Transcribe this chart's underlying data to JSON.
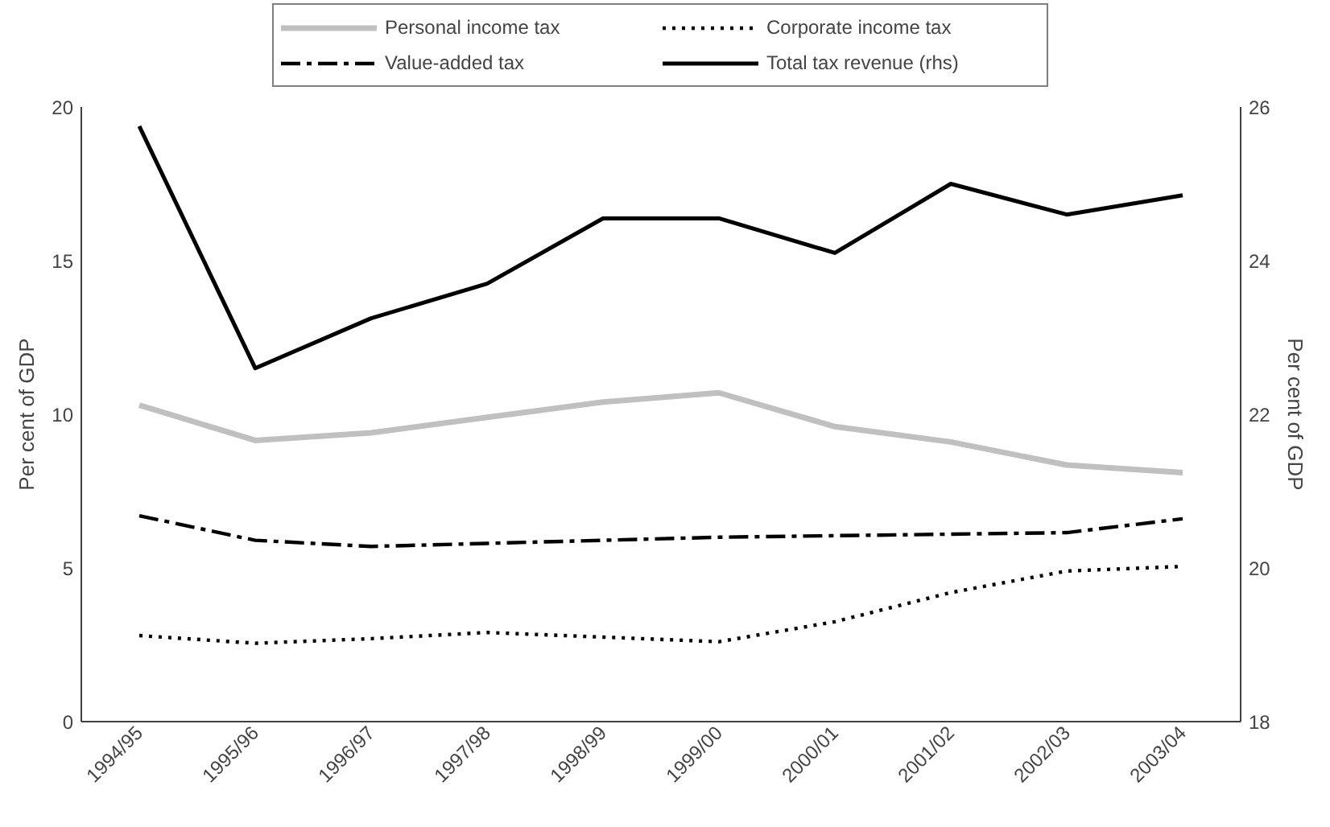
{
  "chart_data": {
    "type": "line",
    "categories": [
      "1994/95",
      "1995/96",
      "1996/97",
      "1997/98",
      "1998/99",
      "1999/00",
      "2000/01",
      "2001/02",
      "2002/03",
      "2003/04"
    ],
    "series": [
      {
        "name": "Personal income tax",
        "color": "#c0c0c0",
        "line_style": "solid",
        "values": [
          10.3,
          9.15,
          9.4,
          9.9,
          10.4,
          10.7,
          9.6,
          9.1,
          8.35,
          8.1
        ]
      },
      {
        "name": "Corporate income tax",
        "color": "#000000",
        "line_style": "dotted",
        "values": [
          2.8,
          2.55,
          2.7,
          2.9,
          2.75,
          2.6,
          3.25,
          4.2,
          4.9,
          5.05
        ]
      },
      {
        "name": "Value-added tax",
        "color": "#000000",
        "line_style": "dashdot",
        "values": [
          6.7,
          5.9,
          5.7,
          5.8,
          5.9,
          6.0,
          6.05,
          6.1,
          6.15,
          6.6
        ]
      },
      {
        "name": "Total tax revenue (rhs)",
        "color": "#000000",
        "line_style": "solid",
        "axis": "y2",
        "values": [
          25.75,
          22.6,
          23.25,
          23.7,
          24.55,
          24.55,
          24.1,
          25.0,
          24.6,
          24.85
        ]
      }
    ],
    "ylabel": "Per cent of GDP",
    "y2label": "Per cent of GDP",
    "ylim": [
      0,
      20
    ],
    "yticks": [
      0,
      5,
      10,
      15,
      20
    ],
    "y2lim": [
      18,
      26
    ],
    "y2ticks": [
      18,
      20,
      22,
      24,
      26
    ],
    "grid": false,
    "legend": "top",
    "marker": "none"
  }
}
